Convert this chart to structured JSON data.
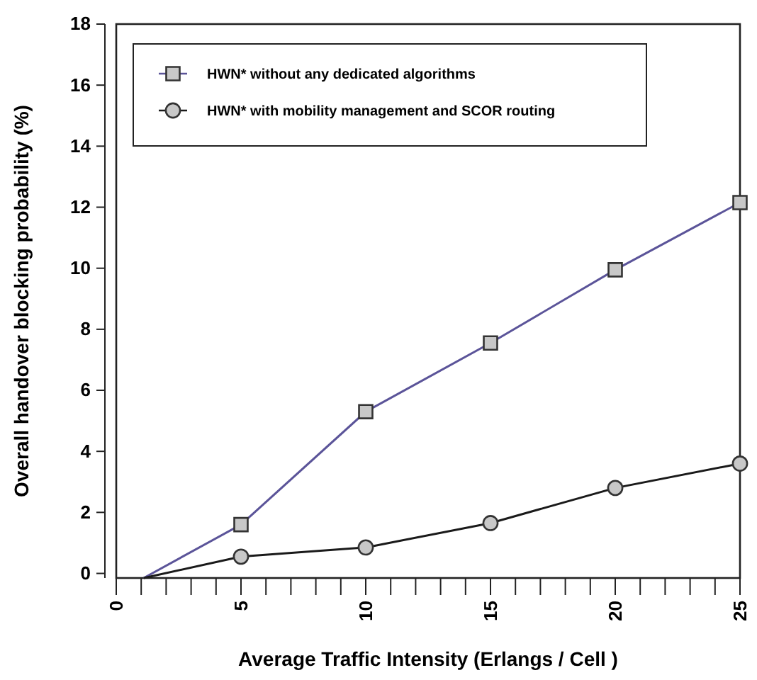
{
  "chart_data": {
    "type": "line",
    "xlabel": "Average Traffic Intensity (Erlangs / Cell )",
    "ylabel": "Overall handover blocking probability (%)",
    "x": [
      1.1,
      5,
      10,
      15,
      20,
      25
    ],
    "series": [
      {
        "name": "HWN* without any dedicated algorithms",
        "color": "#5b5499",
        "marker": "square",
        "values": [
          -0.15,
          1.6,
          5.3,
          7.55,
          9.95,
          12.15
        ]
      },
      {
        "name": "HWN* with mobility management and SCOR routing",
        "color": "#1a1a1a",
        "marker": "circle",
        "values": [
          -0.15,
          0.55,
          0.85,
          1.65,
          2.8,
          3.6
        ]
      }
    ],
    "xlim": [
      0,
      25
    ],
    "ylim": [
      -0.15,
      18
    ],
    "xticks": [
      0,
      {
        "value": 1,
        "label": null
      },
      {
        "value": 2,
        "label": null
      },
      {
        "value": 3,
        "label": null
      },
      {
        "value": 4,
        "label": null
      },
      5,
      {
        "value": 6,
        "label": null
      },
      {
        "value": 7,
        "label": null
      },
      {
        "value": 8,
        "label": null
      },
      {
        "value": 9,
        "label": null
      },
      10,
      {
        "value": 11,
        "label": null
      },
      {
        "value": 12,
        "label": null
      },
      {
        "value": 13,
        "label": null
      },
      {
        "value": 14,
        "label": null
      },
      15,
      {
        "value": 16,
        "label": null
      },
      {
        "value": 17,
        "label": null
      },
      {
        "value": 18,
        "label": null
      },
      {
        "value": 19,
        "label": null
      },
      20,
      {
        "value": 21,
        "label": null
      },
      {
        "value": 22,
        "label": null
      },
      {
        "value": 23,
        "label": null
      },
      {
        "value": 24,
        "label": null
      },
      25
    ],
    "yticks": [
      0,
      2,
      4,
      6,
      8,
      10,
      12,
      14,
      16,
      18
    ],
    "grid": false,
    "legend": "top left"
  }
}
